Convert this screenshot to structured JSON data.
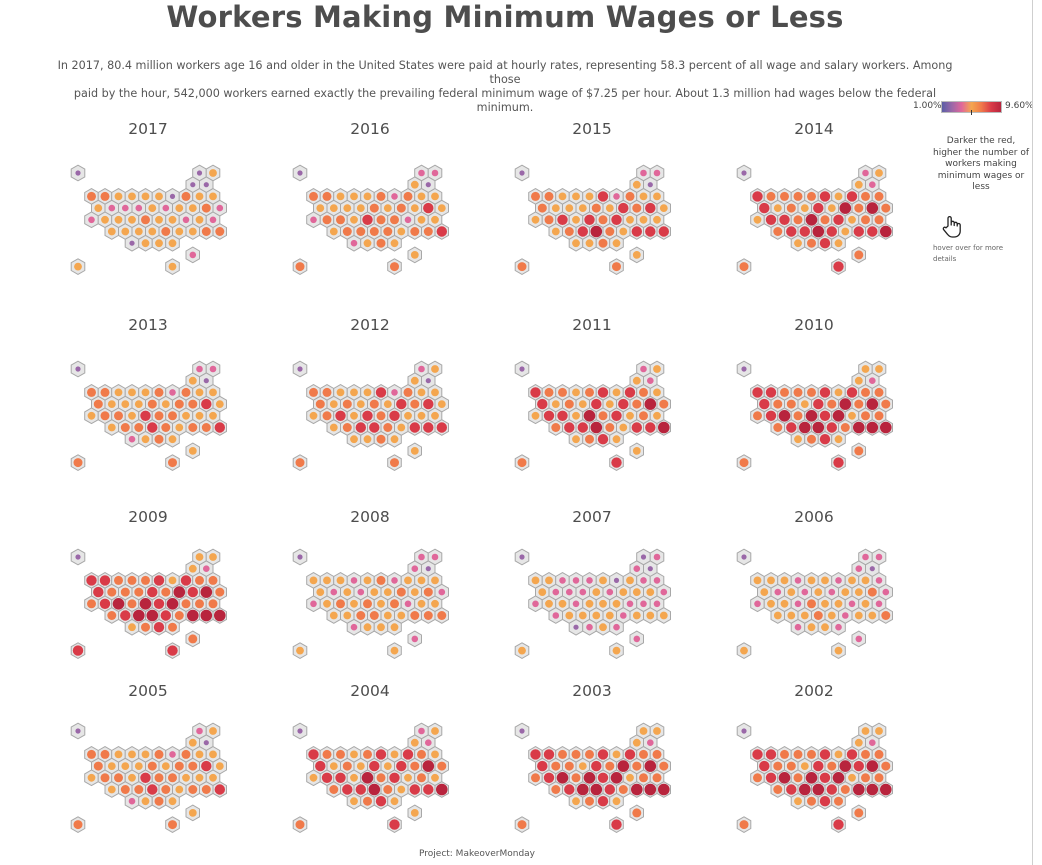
{
  "title": "Workers Making Minimum Wages or Less",
  "subtitle_line1": "In 2017, 80.4 million workers age 16 and older in the United States were paid at hourly rates, representing 58.3 percent of all wage and salary workers. Among those",
  "subtitle_line2": "paid by the hour, 542,000 workers earned exactly the prevailing federal minimum wage of $7.25 per hour. About 1.3 million had wages below the federal minimum.",
  "legend": {
    "min_label": "1.00%",
    "max_label": "9.60%",
    "note": "Darker the red, higher the number of workers making minimum wages or less",
    "hover_note": "hover over for more details",
    "hover_icon": "pointer-hand-icon"
  },
  "footer": "Project: MakeoverMonday",
  "colors": {
    "scale": [
      "#5b5ea6",
      "#9a68a8",
      "#e0679a",
      "#f4a64f",
      "#f07a4a",
      "#d93b48",
      "#b8243d"
    ],
    "tile_fill": "#e6e6e6",
    "tile_stroke": "#a8a8a8"
  },
  "chart_data": {
    "type": "hex tile map (small multiples)",
    "measure": "share of hourly workers at or below federal minimum wage, %",
    "scale_range": [
      1.0,
      9.6
    ],
    "color_levels_approx_percent": [
      1.0,
      2.5,
      3.5,
      4.8,
      6.0,
      7.5,
      9.0
    ],
    "panels": [
      {
        "year": "2017",
        "levels": [
          1,
          1,
          3,
          1,
          1,
          4,
          4,
          3,
          3,
          3,
          3,
          1,
          4,
          3,
          3,
          3,
          2,
          2,
          2,
          3,
          2,
          3,
          3,
          4,
          2,
          2,
          3,
          3,
          3,
          4,
          3,
          3,
          2,
          3,
          2,
          3,
          3,
          3,
          3,
          4,
          3,
          3,
          4,
          4,
          1,
          3,
          3,
          3,
          2,
          3,
          3
        ]
      },
      {
        "year": "2016",
        "levels": [
          1,
          2,
          2,
          3,
          1,
          4,
          4,
          3,
          3,
          3,
          4,
          2,
          4,
          3,
          3,
          3,
          3,
          3,
          3,
          4,
          3,
          4,
          3,
          5,
          3,
          2,
          4,
          4,
          3,
          5,
          4,
          4,
          2,
          3,
          3,
          3,
          4,
          4,
          4,
          4,
          3,
          4,
          4,
          5,
          2,
          3,
          4,
          3,
          3,
          4,
          4
        ]
      },
      {
        "year": "2015",
        "levels": [
          1,
          2,
          2,
          3,
          1,
          4,
          4,
          3,
          3,
          3,
          5,
          2,
          4,
          3,
          3,
          4,
          3,
          3,
          3,
          4,
          3,
          5,
          4,
          5,
          3,
          3,
          4,
          5,
          3,
          5,
          4,
          5,
          3,
          3,
          3,
          3,
          4,
          5,
          6,
          4,
          3,
          5,
          5,
          5,
          3,
          3,
          4,
          3,
          3,
          4,
          4
        ]
      },
      {
        "year": "2014",
        "levels": [
          1,
          2,
          3,
          3,
          2,
          5,
          4,
          4,
          4,
          4,
          5,
          3,
          5,
          4,
          4,
          5,
          3,
          4,
          3,
          5,
          3,
          6,
          4,
          6,
          4,
          3,
          5,
          5,
          4,
          6,
          4,
          5,
          3,
          4,
          4,
          4,
          5,
          5,
          6,
          5,
          3,
          5,
          5,
          6,
          3,
          4,
          5,
          3,
          4,
          4,
          5
        ]
      },
      {
        "year": "2013",
        "levels": [
          1,
          2,
          2,
          3,
          1,
          4,
          4,
          3,
          3,
          3,
          4,
          2,
          4,
          3,
          3,
          4,
          3,
          3,
          3,
          4,
          3,
          4,
          4,
          5,
          3,
          3,
          4,
          4,
          3,
          5,
          4,
          4,
          3,
          3,
          3,
          3,
          4,
          4,
          5,
          4,
          3,
          4,
          4,
          5,
          2,
          3,
          4,
          3,
          3,
          4,
          4
        ]
      },
      {
        "year": "2012",
        "levels": [
          1,
          2,
          3,
          3,
          1,
          4,
          4,
          3,
          3,
          3,
          5,
          2,
          4,
          3,
          3,
          4,
          3,
          4,
          3,
          4,
          3,
          5,
          4,
          5,
          3,
          3,
          4,
          5,
          3,
          5,
          4,
          5,
          3,
          3,
          3,
          3,
          4,
          5,
          5,
          4,
          3,
          5,
          5,
          5,
          3,
          3,
          4,
          3,
          3,
          4,
          4
        ]
      },
      {
        "year": "2011",
        "levels": [
          1,
          2,
          3,
          3,
          2,
          5,
          4,
          4,
          3,
          4,
          5,
          3,
          5,
          4,
          3,
          5,
          3,
          4,
          3,
          5,
          3,
          5,
          4,
          6,
          4,
          3,
          5,
          5,
          3,
          6,
          4,
          5,
          3,
          4,
          3,
          4,
          5,
          5,
          6,
          4,
          3,
          5,
          5,
          6,
          3,
          4,
          5,
          3,
          3,
          4,
          5
        ]
      },
      {
        "year": "2010",
        "levels": [
          1,
          3,
          3,
          3,
          2,
          5,
          5,
          4,
          4,
          4,
          5,
          3,
          5,
          4,
          4,
          5,
          4,
          4,
          3,
          5,
          4,
          6,
          4,
          6,
          4,
          4,
          5,
          6,
          4,
          6,
          5,
          6,
          3,
          4,
          4,
          4,
          5,
          6,
          6,
          5,
          4,
          6,
          6,
          6,
          3,
          4,
          5,
          3,
          4,
          4,
          5
        ]
      },
      {
        "year": "2009",
        "levels": [
          1,
          3,
          3,
          3,
          2,
          5,
          5,
          4,
          4,
          4,
          5,
          3,
          5,
          4,
          4,
          5,
          4,
          4,
          4,
          5,
          4,
          6,
          5,
          6,
          4,
          4,
          5,
          6,
          4,
          6,
          5,
          6,
          4,
          4,
          4,
          4,
          5,
          6,
          6,
          5,
          4,
          6,
          6,
          6,
          3,
          4,
          5,
          4,
          4,
          5,
          5
        ]
      },
      {
        "year": "2008",
        "levels": [
          1,
          2,
          2,
          2,
          1,
          3,
          3,
          3,
          2,
          3,
          4,
          2,
          3,
          3,
          3,
          3,
          2,
          3,
          2,
          3,
          3,
          4,
          3,
          4,
          2,
          2,
          3,
          4,
          3,
          4,
          3,
          4,
          2,
          3,
          3,
          3,
          3,
          4,
          4,
          3,
          3,
          4,
          4,
          4,
          2,
          3,
          3,
          3,
          2,
          3,
          3
        ]
      },
      {
        "year": "2007",
        "levels": [
          1,
          1,
          2,
          2,
          1,
          3,
          3,
          2,
          2,
          2,
          3,
          1,
          3,
          2,
          2,
          3,
          2,
          2,
          2,
          3,
          2,
          3,
          3,
          3,
          2,
          2,
          3,
          3,
          2,
          3,
          3,
          3,
          2,
          2,
          2,
          2,
          3,
          3,
          3,
          3,
          2,
          3,
          3,
          3,
          1,
          2,
          3,
          2,
          2,
          3,
          3
        ]
      },
      {
        "year": "2006",
        "levels": [
          1,
          2,
          2,
          2,
          1,
          3,
          3,
          3,
          2,
          3,
          3,
          2,
          3,
          3,
          2,
          3,
          2,
          3,
          2,
          3,
          2,
          3,
          3,
          4,
          2,
          2,
          3,
          3,
          2,
          4,
          3,
          3,
          2,
          3,
          2,
          3,
          3,
          3,
          4,
          3,
          2,
          3,
          3,
          4,
          2,
          3,
          3,
          2,
          2,
          3,
          3
        ]
      },
      {
        "year": "2005",
        "levels": [
          1,
          2,
          3,
          3,
          1,
          4,
          4,
          3,
          3,
          3,
          4,
          2,
          4,
          3,
          3,
          4,
          3,
          3,
          3,
          4,
          3,
          4,
          4,
          5,
          3,
          3,
          4,
          4,
          3,
          5,
          4,
          4,
          3,
          3,
          3,
          3,
          4,
          4,
          5,
          4,
          3,
          4,
          4,
          5,
          2,
          3,
          4,
          3,
          3,
          4,
          4
        ]
      },
      {
        "year": "2004",
        "levels": [
          1,
          2,
          3,
          3,
          2,
          5,
          4,
          4,
          3,
          4,
          5,
          3,
          5,
          4,
          3,
          5,
          3,
          4,
          3,
          5,
          3,
          5,
          4,
          6,
          4,
          3,
          5,
          5,
          3,
          6,
          4,
          5,
          3,
          4,
          3,
          4,
          5,
          5,
          6,
          4,
          3,
          5,
          5,
          6,
          3,
          4,
          5,
          3,
          3,
          4,
          5
        ]
      },
      {
        "year": "2003",
        "levels": [
          1,
          3,
          3,
          3,
          2,
          5,
          5,
          4,
          4,
          4,
          5,
          3,
          5,
          4,
          4,
          5,
          4,
          4,
          3,
          5,
          4,
          6,
          4,
          6,
          4,
          4,
          5,
          6,
          4,
          6,
          5,
          6,
          3,
          4,
          4,
          4,
          5,
          6,
          6,
          5,
          4,
          6,
          6,
          6,
          3,
          4,
          5,
          3,
          4,
          4,
          5
        ]
      },
      {
        "year": "2002",
        "levels": [
          1,
          3,
          3,
          3,
          2,
          5,
          5,
          4,
          4,
          4,
          5,
          3,
          5,
          4,
          4,
          5,
          4,
          4,
          3,
          5,
          4,
          6,
          5,
          6,
          4,
          4,
          5,
          6,
          4,
          6,
          5,
          6,
          3,
          4,
          4,
          4,
          5,
          6,
          6,
          5,
          4,
          6,
          6,
          6,
          3,
          4,
          5,
          4,
          4,
          4,
          5
        ]
      }
    ]
  }
}
